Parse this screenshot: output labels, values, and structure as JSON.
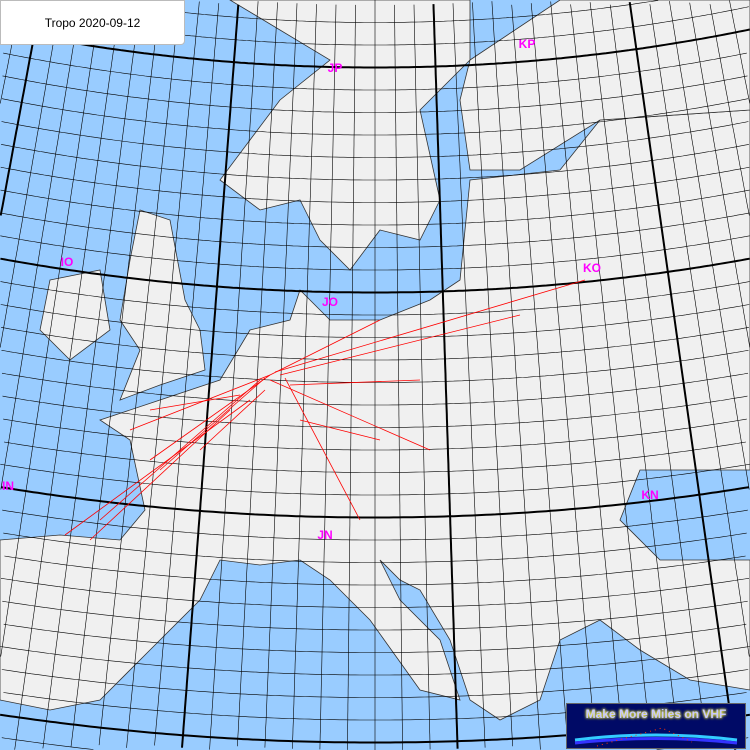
{
  "title": "Tropo 2020-09-12",
  "colors": {
    "sea": "#99ccff",
    "land": "#f0f0f0",
    "grid": "#000000",
    "field_label": "#ff00ff",
    "paths": "#ff0000",
    "logo_bg": "#000a66"
  },
  "field_labels": [
    "IO",
    "JP",
    "KP",
    "KO",
    "JO",
    "IN",
    "JN",
    "KN"
  ],
  "logo": {
    "text": "Make More Miles on VHF"
  }
}
